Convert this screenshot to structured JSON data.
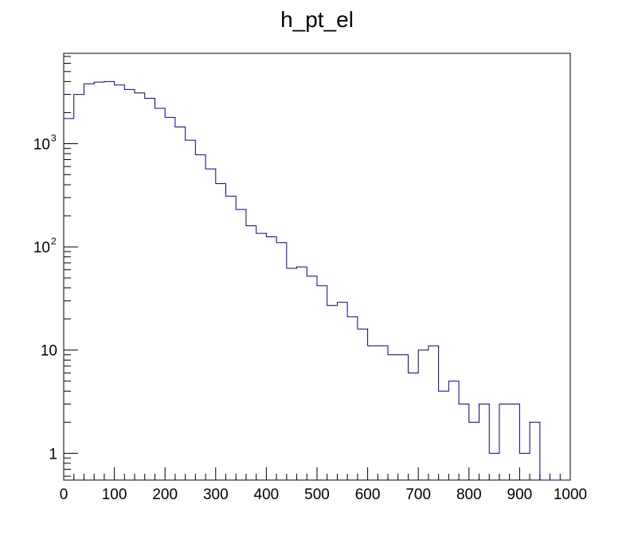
{
  "chart_data": {
    "type": "histogram",
    "title": "h_pt_el",
    "xlabel": "",
    "ylabel": "",
    "xlim": [
      0,
      1000
    ],
    "ylim": [
      0.55,
      7500
    ],
    "y_scale": "log",
    "bin_width": 20,
    "bin_edges_start": 0,
    "x_ticks": [
      "0",
      "100",
      "200",
      "300",
      "400",
      "500",
      "600",
      "700",
      "800",
      "900",
      "1000"
    ],
    "y_ticks": [
      {
        "value": 1,
        "label": "1",
        "base": "",
        "exp": ""
      },
      {
        "value": 10,
        "label": "10",
        "base": "",
        "exp": ""
      },
      {
        "value": 100,
        "label": "",
        "base": "10",
        "exp": "2"
      },
      {
        "value": 1000,
        "label": "",
        "base": "10",
        "exp": "3"
      }
    ],
    "counts": [
      1750,
      3000,
      3800,
      3950,
      4000,
      3700,
      3350,
      3100,
      2750,
      2200,
      1800,
      1450,
      1080,
      780,
      570,
      410,
      310,
      230,
      160,
      135,
      125,
      110,
      62,
      64,
      52,
      42,
      27,
      29,
      21,
      16,
      11,
      11,
      9,
      9,
      6,
      10,
      11,
      4,
      5,
      3,
      2,
      3,
      1,
      3,
      3,
      1,
      2,
      0,
      0,
      0
    ],
    "line_color": "#000099",
    "grid": false,
    "legend": "none"
  }
}
